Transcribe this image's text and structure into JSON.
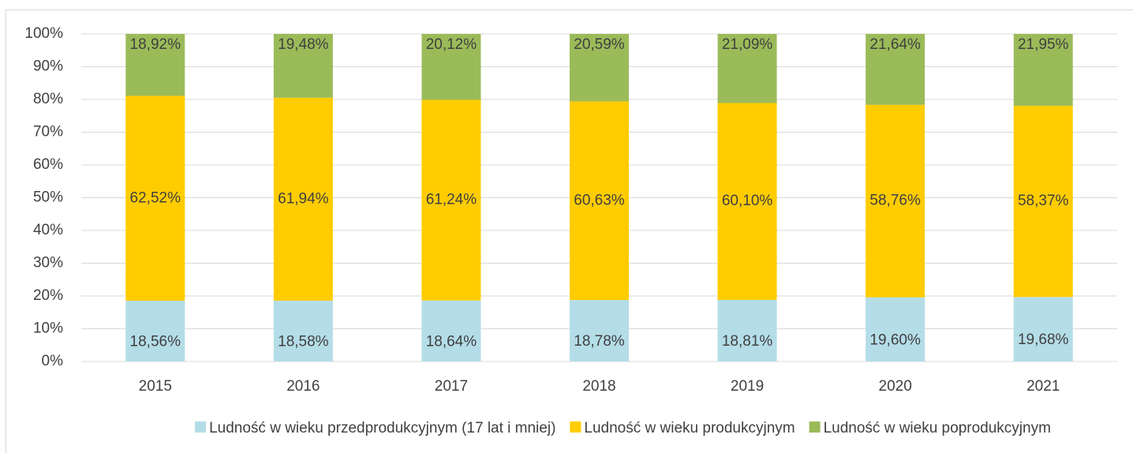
{
  "chart_data": {
    "type": "stacked_bar",
    "categories": [
      "2015",
      "2016",
      "2017",
      "2018",
      "2019",
      "2020",
      "2021"
    ],
    "series": [
      {
        "name": "Ludność w wieku przedprodukcyjnym (17 lat i mniej)",
        "color": "#b4dde8",
        "values": [
          18.56,
          18.58,
          18.64,
          18.78,
          18.81,
          19.6,
          19.68
        ],
        "value_labels": [
          "18,56%",
          "18,58%",
          "18,64%",
          "18,78%",
          "18,81%",
          "19,60%",
          "19,68%"
        ]
      },
      {
        "name": "Ludność w wieku produkcyjnym",
        "color": "#ffcc00",
        "values": [
          62.52,
          61.94,
          61.24,
          60.63,
          60.1,
          58.76,
          58.37
        ],
        "value_labels": [
          "62,52%",
          "61,94%",
          "61,24%",
          "60,63%",
          "60,10%",
          "58,76%",
          "58,37%"
        ]
      },
      {
        "name": "Ludność w wieku poprodukcyjnym",
        "color": "#9bbb59",
        "values": [
          18.92,
          19.48,
          20.12,
          20.59,
          21.09,
          21.64,
          21.95
        ],
        "value_labels": [
          "18,92%",
          "19,48%",
          "20,12%",
          "20,59%",
          "21,09%",
          "21,64%",
          "21,95%"
        ]
      }
    ],
    "ylim": [
      0,
      100
    ],
    "yticks": [
      {
        "value": 0,
        "label": "0%"
      },
      {
        "value": 10,
        "label": "10%"
      },
      {
        "value": 20,
        "label": "20%"
      },
      {
        "value": 30,
        "label": "30%"
      },
      {
        "value": 40,
        "label": "40%"
      },
      {
        "value": 50,
        "label": "50%"
      },
      {
        "value": 60,
        "label": "60%"
      },
      {
        "value": 70,
        "label": "70%"
      },
      {
        "value": 80,
        "label": "80%"
      },
      {
        "value": 90,
        "label": "90%"
      },
      {
        "value": 100,
        "label": "100%"
      }
    ],
    "grid": true,
    "legend": "bottom"
  }
}
